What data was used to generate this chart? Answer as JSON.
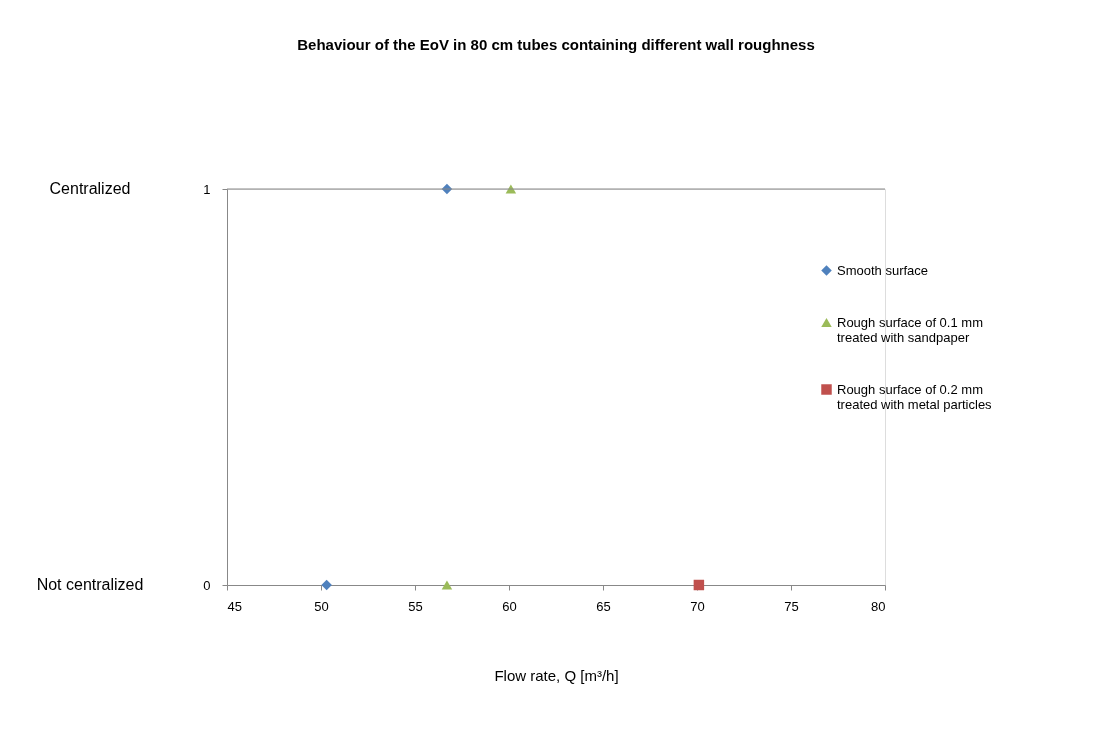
{
  "chart_data": {
    "type": "scatter",
    "title": "Behaviour of the EoV in 80 cm tubes containing different  wall roughness",
    "xlabel": "Flow rate, Q  [m³/h]",
    "xlim": [
      45,
      80
    ],
    "xticks": [
      45,
      50,
      55,
      60,
      65,
      70,
      75,
      80
    ],
    "ylim": [
      0,
      1
    ],
    "yticks": [
      0,
      1
    ],
    "ref_lines": [
      {
        "axis": "y",
        "value": 1,
        "color": "#888888"
      }
    ],
    "legend": "right",
    "annotations": [
      "Centralized",
      "Not centralized"
    ],
    "series": [
      {
        "name": "Smooth surface",
        "color": "#4f81bd",
        "marker": "diamond",
        "x": [
          50.3,
          56.7
        ],
        "values": [
          0,
          1
        ]
      },
      {
        "name": "Rough surface of 0.1 mm treated with sandpaper",
        "color": "#9bbb59",
        "marker": "triangle",
        "x": [
          56.7,
          60.1
        ],
        "values": [
          0,
          1
        ]
      },
      {
        "name": "Rough surface of 0.2 mm treated with metal particles",
        "color": "#c0504d",
        "marker": "square",
        "x": [
          70.1
        ],
        "values": [
          0
        ]
      }
    ]
  }
}
